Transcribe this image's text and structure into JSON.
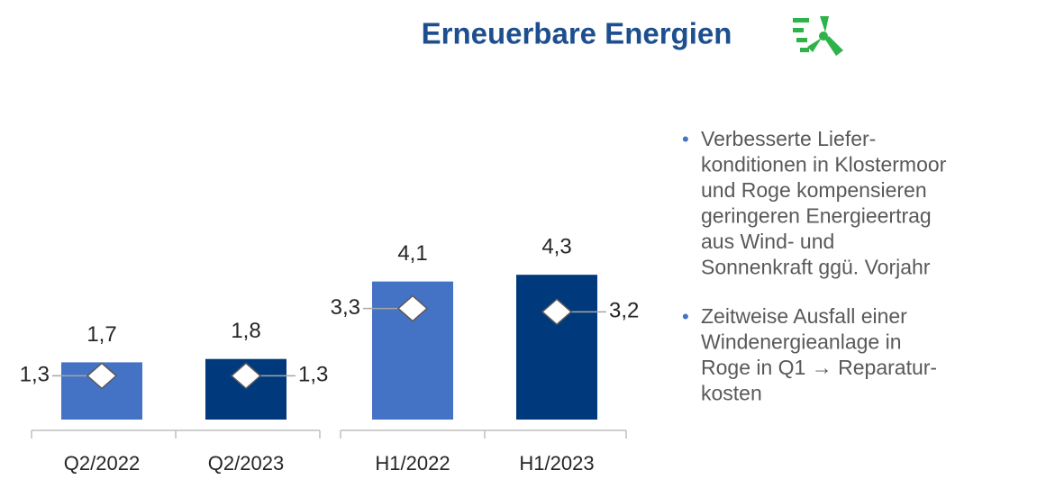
{
  "chart_data": {
    "type": "bar",
    "title": "Erneuerbare Energien",
    "categories": [
      "Q2/2022",
      "Q2/2023",
      "H1/2022",
      "H1/2023"
    ],
    "values": [
      1.7,
      1.8,
      4.1,
      4.3
    ],
    "value_labels": [
      "1,7",
      "1,8",
      "4,1",
      "4,3"
    ],
    "colors": [
      "#4472c4",
      "#003a7d",
      "#4472c4",
      "#003a7d"
    ],
    "markers": {
      "values": [
        1.3,
        1.3,
        3.3,
        3.2
      ],
      "value_labels": [
        "1,3",
        "1,3",
        "3,3",
        "3,2"
      ],
      "color": "#ffffff"
    },
    "ylim": [
      0,
      5
    ]
  },
  "bullets": [
    [
      "Verbesserte Liefer-",
      "konditionen in Klostermoor",
      "und Roge kompensieren",
      "geringeren Energieertrag",
      "aus Wind- und",
      "Sonnenkraft ggü. Vorjahr"
    ],
    [
      "Zeitweise Ausfall einer",
      "Windenergieanlage in",
      "Roge in Q1 → Reparatur-",
      "kosten"
    ]
  ]
}
